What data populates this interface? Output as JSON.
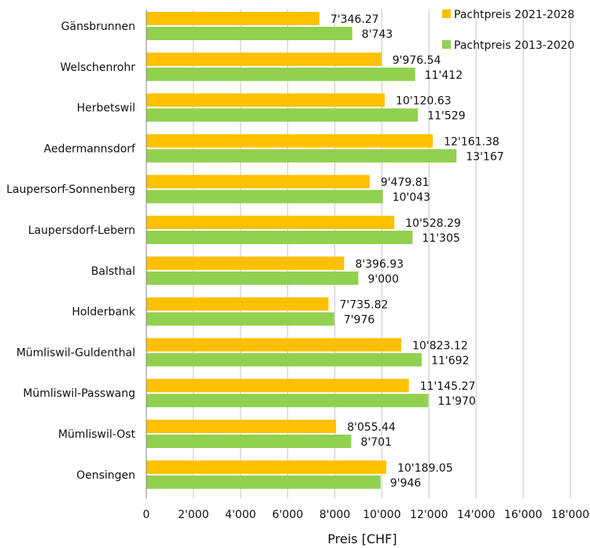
{
  "chart_data": {
    "type": "bar",
    "orientation": "horizontal",
    "categories": [
      "Gänsbrunnen",
      "Welschenrohr",
      "Herbetswil",
      "Aedermannsdorf",
      "Laupersorf-Sonnenberg",
      "Laupersdorf-Lebern",
      "Balsthal",
      "Holderbank",
      "Mümliswil-Guldenthal",
      "Mümliswil-Passwang",
      "Mümliswil-Ost",
      "Oensingen"
    ],
    "series": [
      {
        "name": "Pachtpreis 2021-2028",
        "color": "#FFC000",
        "values": [
          7346.27,
          9976.54,
          10120.63,
          12161.38,
          9479.81,
          10528.29,
          8396.93,
          7735.82,
          10823.12,
          11145.27,
          8055.44,
          10189.05
        ],
        "labels": [
          "7'346.27",
          "9'976.54",
          "10'120.63",
          "12'161.38",
          "9'479.81",
          "10'528.29",
          "8'396.93",
          "7'735.82",
          "10'823.12",
          "11'145.27",
          "8'055.44",
          "10'189.05"
        ]
      },
      {
        "name": "Pachtpreis 2013-2020",
        "color": "#92D050",
        "values": [
          8743,
          11412,
          11529,
          13167,
          10043,
          11305,
          9000,
          7976,
          11692,
          11970,
          8701,
          9946
        ],
        "labels": [
          "8'743",
          "11'412",
          "11'529",
          "13'167",
          "10'043",
          "11'305",
          "9'000",
          "7'976",
          "11'692",
          "11'970",
          "8'701",
          "9'946"
        ]
      }
    ],
    "xlabel": "Preis [CHF]",
    "xlim": [
      0,
      18000
    ],
    "xticks": [
      0,
      2000,
      4000,
      6000,
      8000,
      10000,
      12000,
      14000,
      16000,
      18000
    ],
    "xtick_labels": [
      "0",
      "2'000",
      "4'000",
      "6'000",
      "8'000",
      "10'000",
      "12'000",
      "14'000",
      "16'000",
      "18'000"
    ],
    "grid": "vertical",
    "legend_position": "top-right"
  }
}
